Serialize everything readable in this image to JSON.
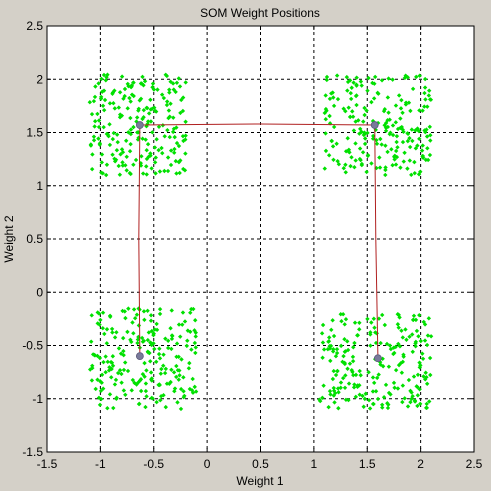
{
  "chart_data": {
    "type": "scatter",
    "title": "SOM Weight Positions",
    "xlabel": "Weight 1",
    "ylabel": "Weight 2",
    "xlim": [
      -1.5,
      2.5
    ],
    "ylim": [
      -1.5,
      2.5
    ],
    "xticks": [
      -1.5,
      -1,
      -0.5,
      0,
      0.5,
      1,
      1.5,
      2,
      2.5
    ],
    "yticks": [
      -1.5,
      -1,
      -0.5,
      0,
      0.5,
      1,
      1.5,
      2,
      2.5
    ],
    "xtick_labels": [
      "-1.5",
      "-1",
      "-0.5",
      "0",
      "0.5",
      "1",
      "1.5",
      "2",
      "2.5"
    ],
    "ytick_labels": [
      "-1.5",
      "-1",
      "-0.5",
      "0",
      "0.5",
      "1",
      "1.5",
      "2",
      "2.5"
    ],
    "grid": true,
    "grid_style": "dashed",
    "colors": {
      "background": "#d4d0c8",
      "plot_area": "#ffffff",
      "inputs": "#00e000",
      "neurons": "#7a7a9a",
      "connections": "#b02020"
    },
    "input_clusters": [
      {
        "x_range": [
          -1.1,
          -0.2
        ],
        "y_range": [
          1.1,
          2.05
        ],
        "count": 220
      },
      {
        "x_range": [
          1.1,
          2.1
        ],
        "y_range": [
          1.1,
          2.05
        ],
        "count": 220
      },
      {
        "x_range": [
          -1.1,
          -0.1
        ],
        "y_range": [
          -1.1,
          -0.15
        ],
        "count": 220
      },
      {
        "x_range": [
          1.05,
          2.1
        ],
        "y_range": [
          -1.1,
          -0.2
        ],
        "count": 220
      }
    ],
    "neurons": [
      {
        "x": -0.63,
        "y": 1.57
      },
      {
        "x": 1.57,
        "y": 1.57
      },
      {
        "x": -0.63,
        "y": -0.6
      },
      {
        "x": 1.6,
        "y": -0.62
      }
    ],
    "neuron_path": [
      {
        "x": -0.63,
        "y": -0.6
      },
      {
        "x": -0.64,
        "y": 0.5
      },
      {
        "x": -0.63,
        "y": 1.57
      },
      {
        "x": 0.5,
        "y": 1.58
      },
      {
        "x": 1.57,
        "y": 1.57
      },
      {
        "x": 1.58,
        "y": 0.5
      },
      {
        "x": 1.6,
        "y": -0.62
      }
    ]
  }
}
